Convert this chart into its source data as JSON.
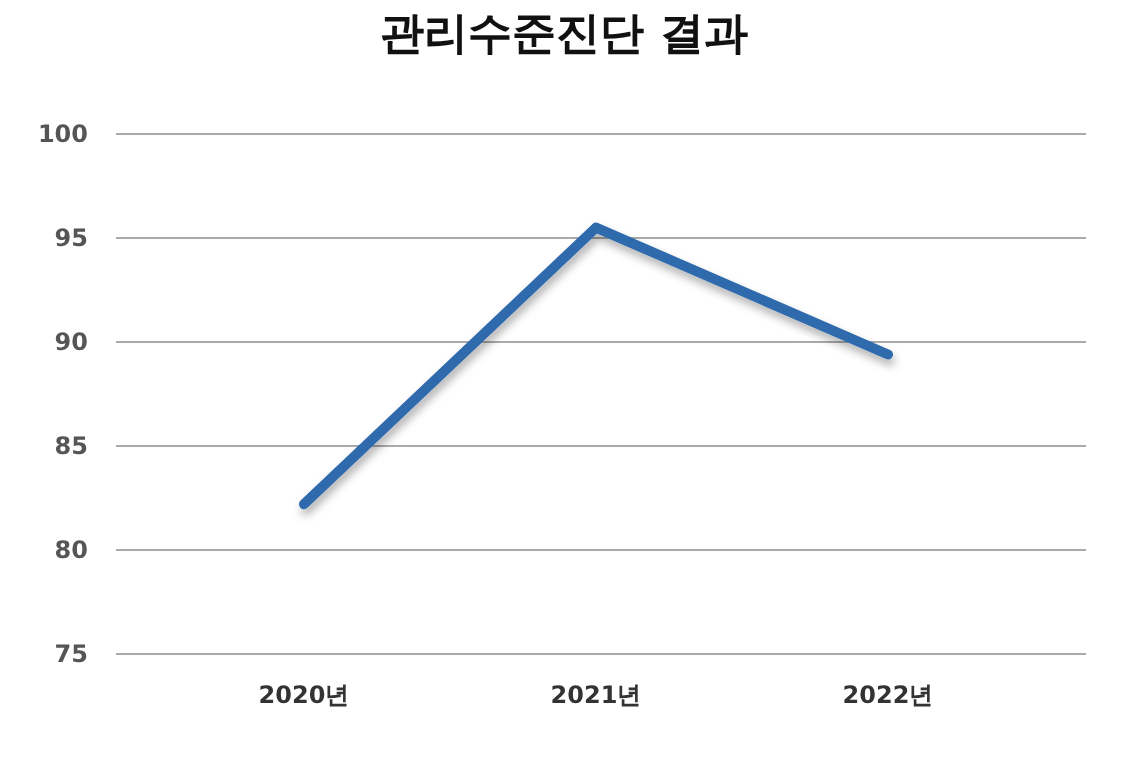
{
  "chart_data": {
    "type": "line",
    "title": "관리수준진단 결과",
    "categories": [
      "2020년",
      "2021년",
      "2022년"
    ],
    "series": [
      {
        "color": "#2f6aac",
        "values": [
          82.2,
          95.5,
          89.4
        ]
      }
    ],
    "ylim": [
      75,
      100
    ],
    "yticks": [
      75,
      80,
      85,
      90,
      95,
      100
    ],
    "grid": "y",
    "marker": "none",
    "line_style": "solid"
  }
}
